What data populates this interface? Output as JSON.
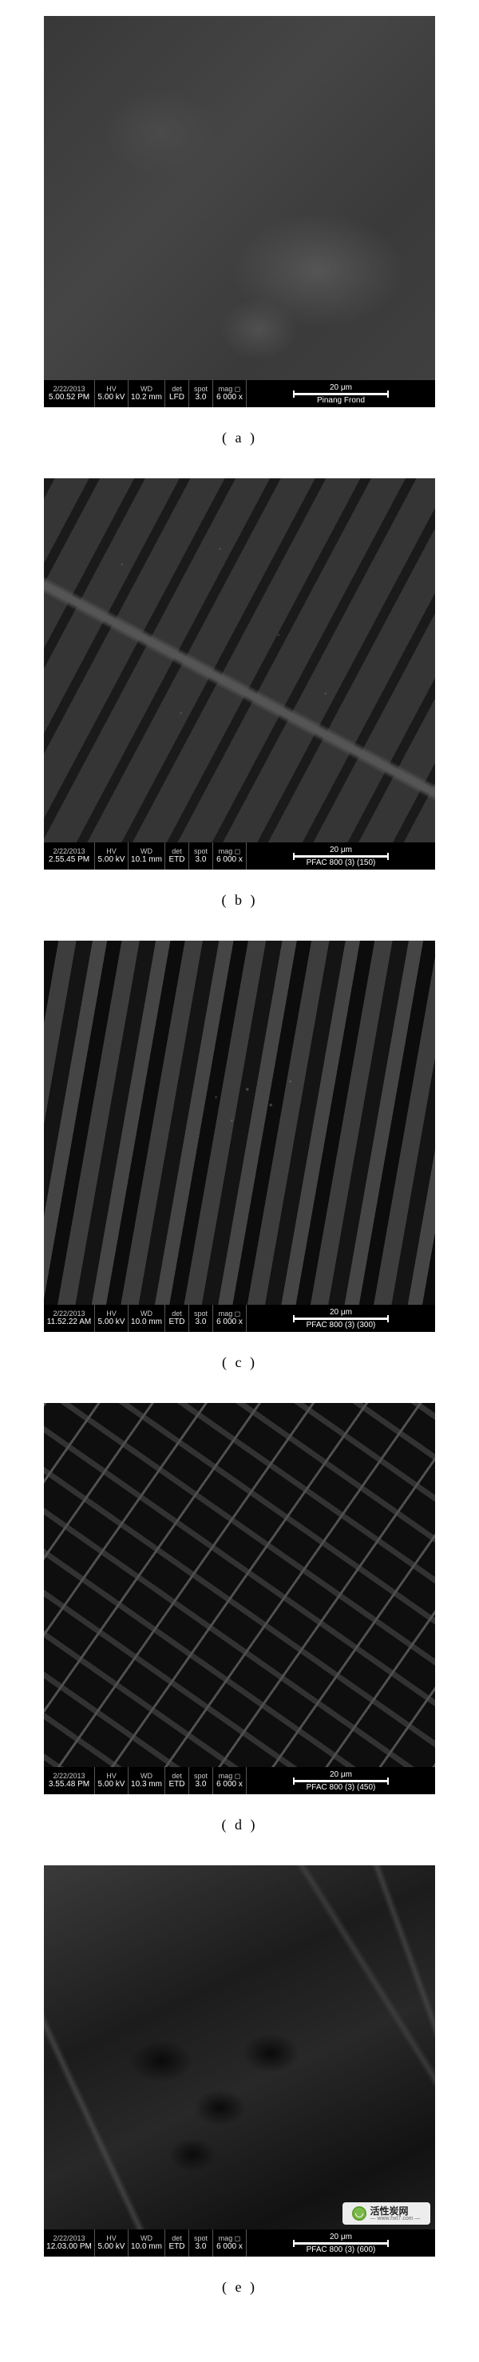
{
  "scale_text": "20 μm",
  "watermark": {
    "cn": "活性炭网",
    "url": "— www.hxt7.com —"
  },
  "figures": [
    {
      "id": "a",
      "caption": "( a )",
      "texture": "tex-a",
      "bar": {
        "date": "2/22/2013",
        "time": "5.00.52 PM",
        "hv": "5.00 kV",
        "wd": "10.2 mm",
        "det": "LFD",
        "spot": "3.0",
        "mag": "6 000 x",
        "sample": "Pinang Frond"
      }
    },
    {
      "id": "b",
      "caption": "( b )",
      "texture": "tex-b",
      "bar": {
        "date": "2/22/2013",
        "time": "2.55.45 PM",
        "hv": "5.00 kV",
        "wd": "10.1 mm",
        "det": "ETD",
        "spot": "3.0",
        "mag": "6 000 x",
        "sample": "PFAC 800 (3) (150)"
      }
    },
    {
      "id": "c",
      "caption": "( c )",
      "texture": "tex-c",
      "bar": {
        "date": "2/22/2013",
        "time": "11.52.22 AM",
        "hv": "5.00 kV",
        "wd": "10.0 mm",
        "det": "ETD",
        "spot": "3.0",
        "mag": "6 000 x",
        "sample": "PFAC 800 (3) (300)"
      }
    },
    {
      "id": "d",
      "caption": "( d )",
      "texture": "tex-d",
      "bar": {
        "date": "2/22/2013",
        "time": "3.55.48 PM",
        "hv": "5.00 kV",
        "wd": "10.3 mm",
        "det": "ETD",
        "spot": "3.0",
        "mag": "6 000 x",
        "sample": "PFAC 800 (3) (450)"
      }
    },
    {
      "id": "e",
      "caption": "( e )",
      "texture": "tex-e",
      "watermark": true,
      "bar": {
        "date": "2/22/2013",
        "time": "12.03.00 PM",
        "hv": "5.00 kV",
        "wd": "10.0 mm",
        "det": "ETD",
        "spot": "3.0",
        "mag": "6 000 x",
        "sample": "PFAC 800 (3) (600)"
      }
    }
  ]
}
